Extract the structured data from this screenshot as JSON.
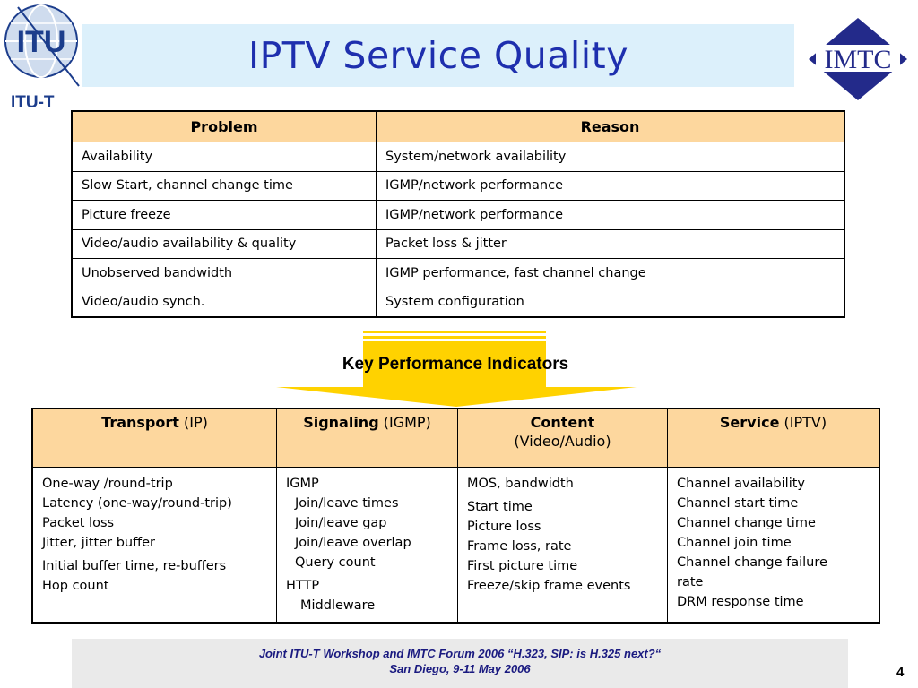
{
  "header": {
    "title": "IPTV Service Quality",
    "left_logo_text": "ITU",
    "left_logo_caption": "ITU-T",
    "right_logo_text": "IMTC"
  },
  "problem_table": {
    "headers": [
      "Problem",
      "Reason"
    ],
    "rows": [
      [
        "Availability",
        "System/network availability"
      ],
      [
        "Slow Start, channel change time",
        "IGMP/network performance"
      ],
      [
        "Picture freeze",
        "IGMP/network performance"
      ],
      [
        "Video/audio availability & quality",
        "Packet loss & jitter"
      ],
      [
        "Unobserved bandwidth",
        "IGMP performance, fast channel change"
      ],
      [
        "Video/audio synch.",
        "System configuration"
      ]
    ]
  },
  "kpi_label": "Key Performance Indicators",
  "kpi_table": {
    "headers": [
      {
        "bold": "Transport",
        "normal": " (IP)",
        "line2": ""
      },
      {
        "bold": "Signaling",
        "normal": " (IGMP)",
        "line2": ""
      },
      {
        "bold": "Content",
        "normal": "",
        "line2": "(Video/Audio)"
      },
      {
        "bold": "Service",
        "normal": " (IPTV)",
        "line2": ""
      }
    ],
    "transport": [
      "One-way /round-trip",
      "Latency (one-way/round-trip)",
      "Packet loss",
      "Jitter, jitter buffer",
      "Initial buffer time, re-buffers",
      "Hop count"
    ],
    "signaling": [
      "IGMP",
      "Join/leave times",
      "Join/leave gap",
      "Join/leave overlap",
      "Query count",
      "HTTP",
      "Middleware"
    ],
    "content": [
      "MOS, bandwidth",
      "Start time",
      "Picture loss",
      "Frame loss, rate",
      "First picture time",
      "Freeze/skip frame events"
    ],
    "service": [
      "Channel availability",
      "Channel start time",
      "Channel change time",
      "Channel join time",
      "Channel change failure",
      "rate",
      "DRM response time"
    ]
  },
  "footer": {
    "line1": "Joint ITU-T Workshop and IMTC Forum 2006 “H.323, SIP: is H.325 next?“",
    "line2": "San Diego, 9-11 May 2006",
    "page_number": "4"
  },
  "colors": {
    "title_text": "#1e2fae",
    "title_bg": "#dcf0fb",
    "header_fill": "#fdd79e",
    "arrow": "#ffd200",
    "footer_bg": "#eaeaea",
    "footer_text": "#1a1a80",
    "itu_blue": "#1c3d8c",
    "imtc_blue": "#232a8a"
  }
}
